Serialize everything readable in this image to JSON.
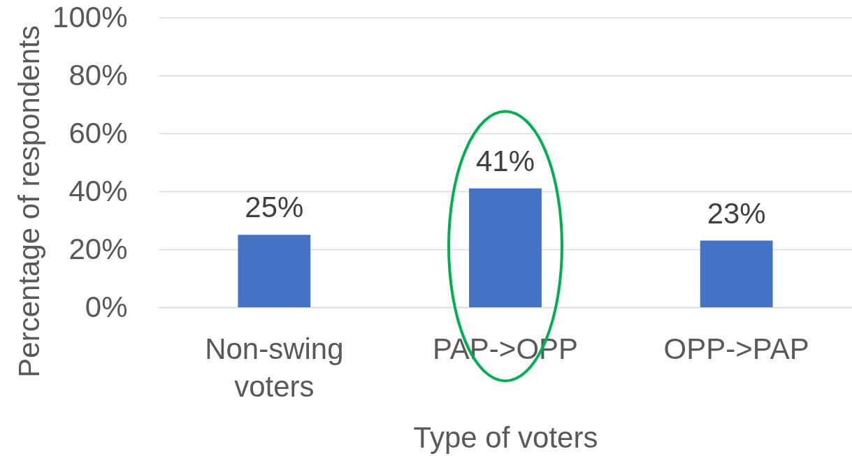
{
  "chart_data": {
    "type": "bar",
    "xlabel": "Type of voters",
    "ylabel": "Percentage of respondents",
    "categories": [
      "Non-swing voters",
      "PAP->OPP",
      "OPP->PAP"
    ],
    "values": [
      25,
      41,
      23
    ],
    "value_labels": [
      "25%",
      "41%",
      "23%"
    ],
    "color": "#4472c4",
    "ylim": [
      0,
      100
    ],
    "yticks": [
      {
        "value": 0,
        "label": "0%"
      },
      {
        "value": 20,
        "label": "20%"
      },
      {
        "value": 40,
        "label": "40%"
      },
      {
        "value": 60,
        "label": "60%"
      },
      {
        "value": 80,
        "label": "80%"
      },
      {
        "value": 100,
        "label": "100%"
      }
    ],
    "grid": "y"
  }
}
